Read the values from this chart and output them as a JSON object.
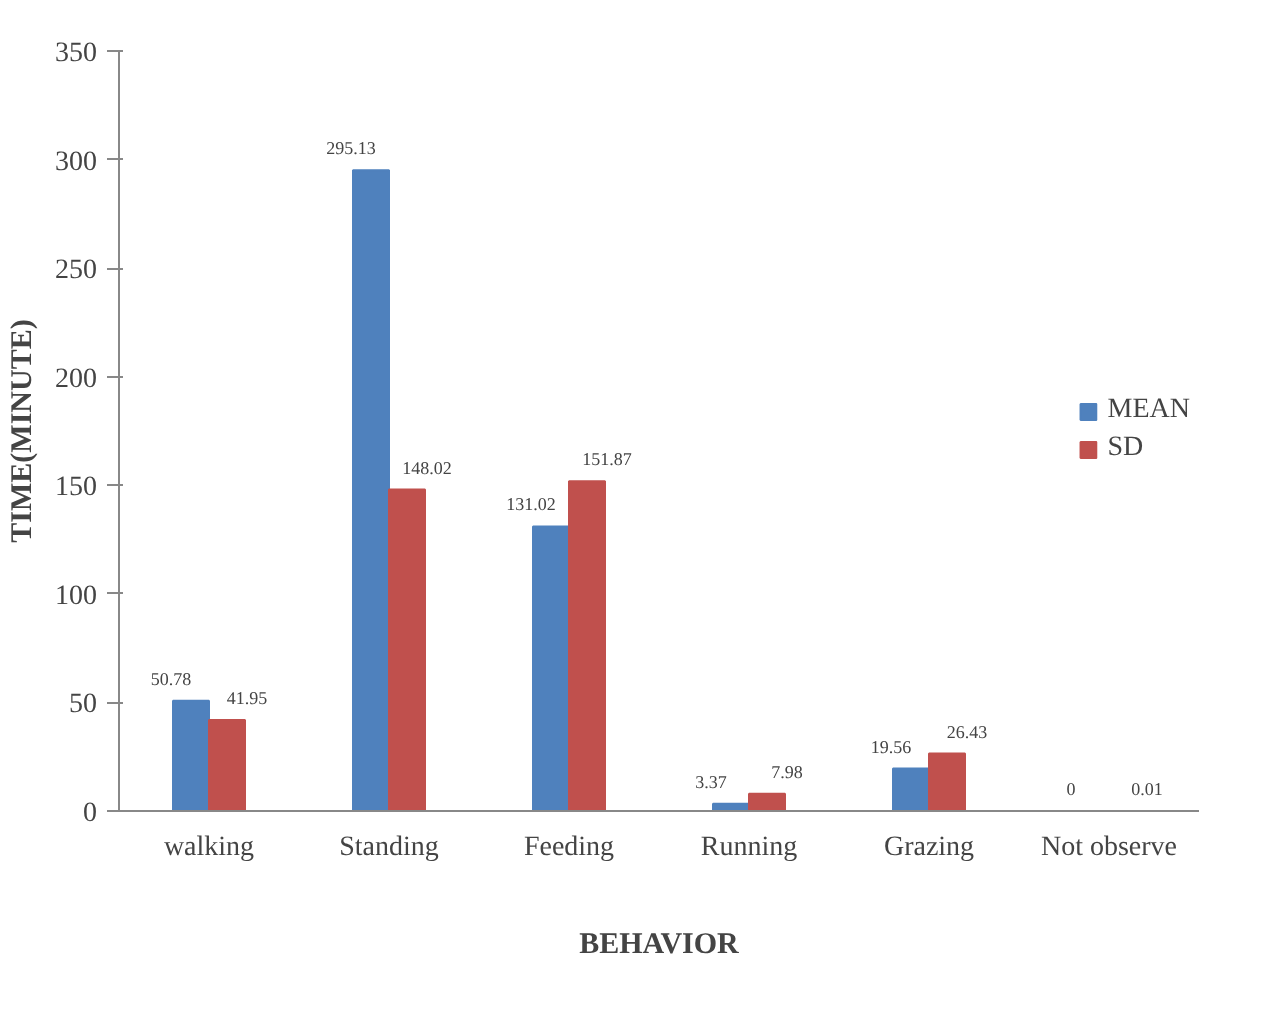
{
  "chart_data": {
    "type": "bar",
    "xlabel": "BEHAVIOR",
    "ylabel": "TIME(MINUTE)",
    "categories": [
      "walking",
      "Standing",
      "Feeding",
      "Running",
      "Grazing",
      "Not observe"
    ],
    "series": [
      {
        "name": "MEAN",
        "color": "#4f81bd",
        "values": [
          50.78,
          295.13,
          131.02,
          3.37,
          19.56,
          0
        ]
      },
      {
        "name": "SD",
        "color": "#c0504d",
        "values": [
          41.95,
          148.02,
          151.87,
          7.98,
          26.43,
          0.01
        ]
      }
    ],
    "ylim": [
      0,
      350
    ],
    "yticks": [
      0,
      50,
      100,
      150,
      200,
      250,
      300,
      350
    ],
    "data_labels": true,
    "legend": "right"
  }
}
